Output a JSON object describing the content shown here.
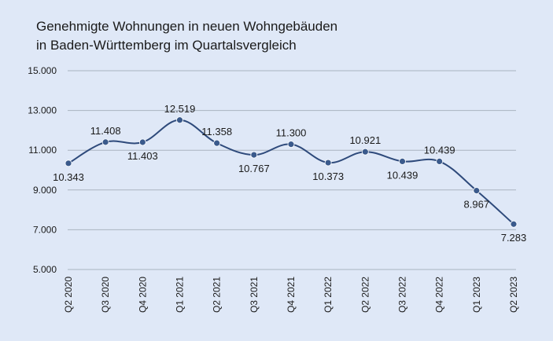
{
  "chart_data": {
    "type": "line",
    "title_line1": "Genehmigte Wohnungen in neuen Wohngebäuden",
    "title_line2": "in Baden-Württemberg im Quartalsvergleich",
    "categories": [
      "Q2 2020",
      "Q3 2020",
      "Q4 2020",
      "Q1 2021",
      "Q2 2021",
      "Q3 2021",
      "Q4 2021",
      "Q1 2022",
      "Q2 2022",
      "Q3 2022",
      "Q4 2022",
      "Q1 2023",
      "Q2 2023"
    ],
    "values": [
      10343,
      11408,
      11403,
      12519,
      11358,
      10767,
      11300,
      10373,
      10921,
      10439,
      10439,
      8967,
      7283
    ],
    "value_labels": [
      "10.343",
      "11.408",
      "11.403",
      "12.519",
      "11.358",
      "10.767",
      "11.300",
      "10.373",
      "10.921",
      "10.439",
      "10.439",
      "8.967",
      "7.283"
    ],
    "label_positions": [
      "below",
      "above",
      "below",
      "above",
      "above",
      "below",
      "above",
      "below",
      "above",
      "below",
      "above",
      "below",
      "below"
    ],
    "y_ticks": [
      5000,
      7000,
      9000,
      11000,
      13000,
      15000
    ],
    "y_tick_labels": [
      "5.000",
      "7.000",
      "9.000",
      "11.000",
      "13.000",
      "15.000"
    ],
    "ylim": [
      5000,
      15000
    ],
    "xlabel": "",
    "ylabel": "",
    "grid": true,
    "colors": {
      "line": "#2e4a7b",
      "marker": "#3a5a8c",
      "grid": "#aab3c0",
      "background": "#dfe8f7"
    }
  }
}
